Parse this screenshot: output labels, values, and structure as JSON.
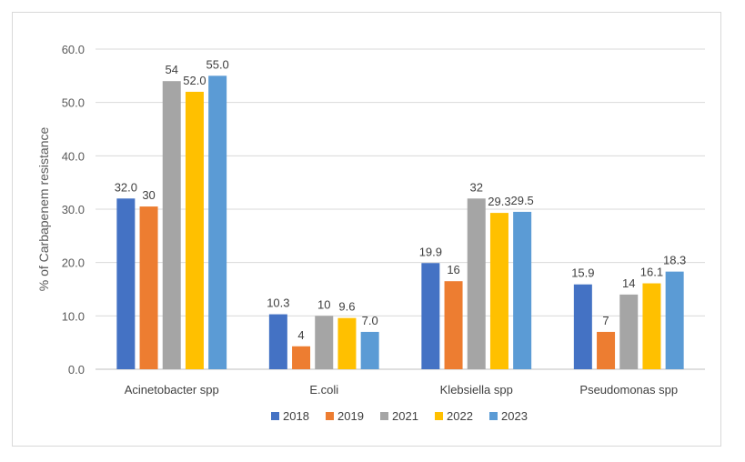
{
  "chart_data": {
    "type": "bar",
    "title": "",
    "xlabel": "",
    "ylabel": "% of Carbapenem resistance",
    "ylim": [
      0,
      60
    ],
    "yticks": [
      "0.0",
      "10.0",
      "20.0",
      "30.0",
      "40.0",
      "50.0",
      "60.0"
    ],
    "grid": true,
    "legend_position": "bottom",
    "categories": [
      "Acinetobacter spp",
      "E.coli",
      "Klebsiella spp",
      "Pseudomonas spp"
    ],
    "series": [
      {
        "name": "2018",
        "color": "#4472C4",
        "values": [
          32.0,
          10.3,
          19.9,
          15.9
        ],
        "labels": [
          "32.0",
          "10.3",
          "19.9",
          "15.9"
        ]
      },
      {
        "name": "2019",
        "color": "#ED7D31",
        "values": [
          30.5,
          4.3,
          16.5,
          7.0
        ],
        "labels": [
          "30",
          "4",
          "16",
          "7"
        ]
      },
      {
        "name": "2021",
        "color": "#A5A5A5",
        "values": [
          54.0,
          10.0,
          32.0,
          14.0
        ],
        "labels": [
          "54",
          "10",
          "32",
          "14"
        ]
      },
      {
        "name": "2022",
        "color": "#FFC000",
        "values": [
          52.0,
          9.6,
          29.3,
          16.1
        ],
        "labels": [
          "52.0",
          "9.6",
          "29.3",
          "16.1"
        ]
      },
      {
        "name": "2023",
        "color": "#5B9BD5",
        "values": [
          55.0,
          7.0,
          29.5,
          18.3
        ],
        "labels": [
          "55.0",
          "7.0",
          "29.5",
          "18.3"
        ]
      }
    ]
  }
}
